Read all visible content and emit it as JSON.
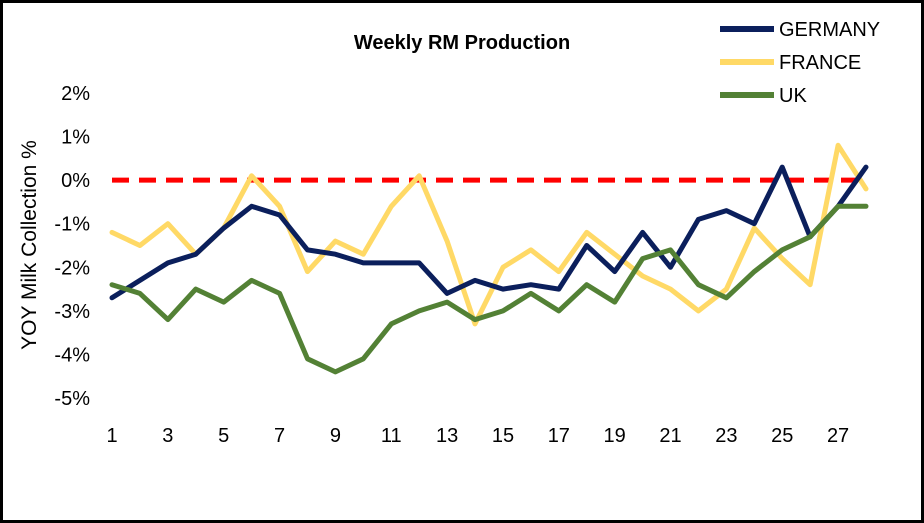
{
  "chart_data": {
    "type": "line",
    "title": "Weekly RM Production",
    "xlabel": "",
    "ylabel": "YOY  Milk Collection %",
    "ylim": [
      -5,
      2
    ],
    "yticks": [
      -5,
      -4,
      -3,
      -2,
      -1,
      0,
      1,
      2
    ],
    "ytick_labels": [
      "-5%",
      "-4%",
      "-3%",
      "-2%",
      "-1%",
      "0%",
      "1%",
      "2%"
    ],
    "xlim": [
      1,
      28
    ],
    "xtick_labels": [
      "1",
      "3",
      "5",
      "7",
      "9",
      "11",
      "13",
      "15",
      "17",
      "19",
      "21",
      "23",
      "25",
      "27"
    ],
    "x": [
      1,
      2,
      3,
      4,
      5,
      6,
      7,
      8,
      9,
      10,
      11,
      12,
      13,
      14,
      15,
      16,
      17,
      18,
      19,
      20,
      21,
      22,
      23,
      24,
      25,
      26,
      27,
      28
    ],
    "reference_line": {
      "y": 0,
      "color": "#ff0000",
      "style": "dashed"
    },
    "legend_position": "top-right",
    "grid": false,
    "series": [
      {
        "name": "GERMANY",
        "color": "#0b1f5c",
        "values": [
          -2.7,
          -2.3,
          -1.9,
          -1.7,
          -1.1,
          -0.6,
          -0.8,
          -1.6,
          -1.7,
          -1.9,
          -1.9,
          -1.9,
          -2.6,
          -2.3,
          -2.5,
          -2.4,
          -2.5,
          -1.5,
          -2.1,
          -1.2,
          -2.0,
          -0.9,
          -0.7,
          -1.0,
          0.3,
          -1.3,
          -0.6,
          0.3
        ]
      },
      {
        "name": "FRANCE",
        "color": "#ffd966",
        "values": [
          -1.2,
          -1.5,
          -1.0,
          -1.7,
          -1.1,
          0.1,
          -0.6,
          -2.1,
          -1.4,
          -1.7,
          -0.6,
          0.1,
          -1.4,
          -3.3,
          -2.0,
          -1.6,
          -2.1,
          -1.2,
          -1.7,
          -2.2,
          -2.5,
          -3.0,
          -2.5,
          -1.1,
          -1.8,
          -2.4,
          0.8,
          -0.2
        ]
      },
      {
        "name": "UK",
        "color": "#538135",
        "values": [
          -2.4,
          -2.6,
          -3.2,
          -2.5,
          -2.8,
          -2.3,
          -2.6,
          -4.1,
          -4.4,
          -4.1,
          -3.3,
          -3.0,
          -2.8,
          -3.2,
          -3.0,
          -2.6,
          -3.0,
          -2.4,
          -2.8,
          -1.8,
          -1.6,
          -2.4,
          -2.7,
          -2.1,
          -1.6,
          -1.3,
          -0.6,
          -0.6
        ]
      }
    ]
  }
}
